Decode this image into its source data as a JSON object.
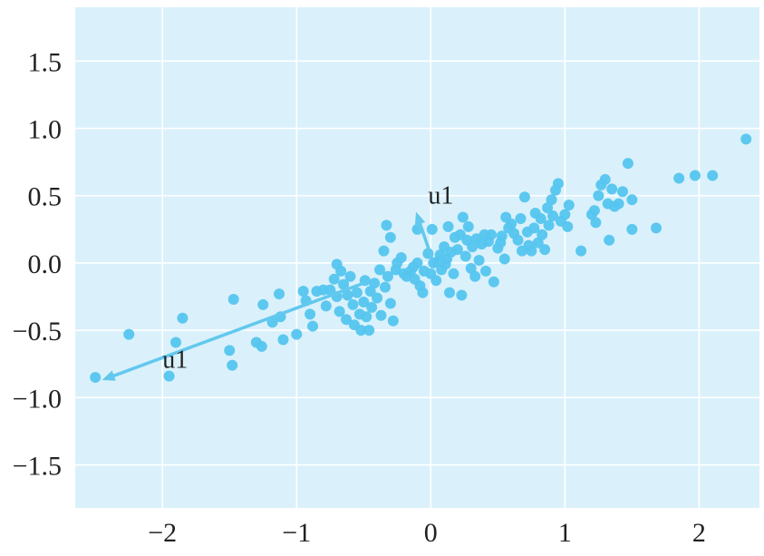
{
  "chart_data": {
    "type": "scatter",
    "title": "",
    "xlabel": "",
    "ylabel": "",
    "xlim": [
      -2.65,
      2.45
    ],
    "ylim": [
      -1.82,
      1.9
    ],
    "grid": true,
    "legend": "none",
    "colors": {
      "background": "#daf1fb",
      "grid": "#ffffff",
      "point": "#55c5ef",
      "arrow": "#62c8ee"
    },
    "x_ticks": [
      {
        "value": -2,
        "label": "−2"
      },
      {
        "value": -1,
        "label": "−1"
      },
      {
        "value": 0,
        "label": "0"
      },
      {
        "value": 1,
        "label": "1"
      },
      {
        "value": 2,
        "label": "2"
      }
    ],
    "y_ticks": [
      {
        "value": 1.5,
        "label": "1.5"
      },
      {
        "value": 1.0,
        "label": "1.0"
      },
      {
        "value": 0.5,
        "label": "0.5"
      },
      {
        "value": 0.0,
        "label": "0.0"
      },
      {
        "value": -0.5,
        "label": "−0.5"
      },
      {
        "value": -1.0,
        "label": "−1.0"
      },
      {
        "value": -1.5,
        "label": "−1.5"
      }
    ],
    "annotations": [
      {
        "text": "u1",
        "x": -0.02,
        "y": 0.44
      },
      {
        "text": "u1",
        "x": -2.0,
        "y": -0.78
      }
    ],
    "arrows": [
      {
        "from": [
          0.01,
          0.03
        ],
        "to": [
          -0.11,
          0.38
        ]
      },
      {
        "from": [
          -0.5,
          -0.15
        ],
        "to": [
          -2.45,
          -0.87
        ]
      }
    ],
    "points": [
      [
        -2.5,
        -0.85
      ],
      [
        -2.25,
        -0.53
      ],
      [
        -1.95,
        -0.84
      ],
      [
        -1.9,
        -0.59
      ],
      [
        -1.85,
        -0.41
      ],
      [
        -1.5,
        -0.65
      ],
      [
        -1.48,
        -0.76
      ],
      [
        -1.47,
        -0.27
      ],
      [
        -1.3,
        -0.59
      ],
      [
        -1.26,
        -0.62
      ],
      [
        -1.25,
        -0.31
      ],
      [
        -1.18,
        -0.44
      ],
      [
        -1.13,
        -0.23
      ],
      [
        -1.1,
        -0.57
      ],
      [
        -1.12,
        -0.4
      ],
      [
        -1.0,
        -0.53
      ],
      [
        -0.95,
        -0.21
      ],
      [
        -0.93,
        -0.28
      ],
      [
        -0.9,
        -0.38
      ],
      [
        -0.88,
        -0.47
      ],
      [
        -0.85,
        -0.21
      ],
      [
        -0.8,
        -0.2
      ],
      [
        -0.78,
        -0.32
      ],
      [
        -0.75,
        -0.2
      ],
      [
        -0.72,
        -0.12
      ],
      [
        -0.7,
        -0.01
      ],
      [
        -0.7,
        -0.25
      ],
      [
        -0.68,
        -0.36
      ],
      [
        -0.67,
        -0.06
      ],
      [
        -0.65,
        -0.16
      ],
      [
        -0.63,
        -0.42
      ],
      [
        -0.62,
        -0.24
      ],
      [
        -0.6,
        -0.1
      ],
      [
        -0.58,
        -0.31
      ],
      [
        -0.57,
        -0.46
      ],
      [
        -0.55,
        -0.22
      ],
      [
        -0.53,
        -0.38
      ],
      [
        -0.52,
        -0.5
      ],
      [
        -0.5,
        -0.29
      ],
      [
        -0.49,
        -0.13
      ],
      [
        -0.48,
        -0.4
      ],
      [
        -0.46,
        -0.5
      ],
      [
        -0.45,
        -0.21
      ],
      [
        -0.44,
        -0.33
      ],
      [
        -0.42,
        -0.15
      ],
      [
        -0.4,
        -0.26
      ],
      [
        -0.38,
        -0.05
      ],
      [
        -0.37,
        -0.39
      ],
      [
        -0.35,
        0.09
      ],
      [
        -0.34,
        -0.18
      ],
      [
        -0.33,
        0.28
      ],
      [
        -0.32,
        -0.1
      ],
      [
        -0.3,
        0.19
      ],
      [
        -0.3,
        -0.3
      ],
      [
        -0.28,
        -0.43
      ],
      [
        -0.26,
        -0.05
      ],
      [
        -0.25,
        0.0
      ],
      [
        -0.22,
        0.04
      ],
      [
        -0.2,
        -0.08
      ],
      [
        -0.18,
        -0.1
      ],
      [
        -0.15,
        -0.06
      ],
      [
        -0.13,
        -0.03
      ],
      [
        -0.12,
        -0.12
      ],
      [
        -0.1,
        0.25
      ],
      [
        -0.1,
        0.0
      ],
      [
        -0.08,
        -0.17
      ],
      [
        -0.06,
        -0.22
      ],
      [
        -0.05,
        -0.06
      ],
      [
        -0.02,
        0.07
      ],
      [
        0.0,
        -0.08
      ],
      [
        0.01,
        0.25
      ],
      [
        0.02,
        0.0
      ],
      [
        0.04,
        -0.13
      ],
      [
        0.05,
        0.01
      ],
      [
        0.07,
        0.06
      ],
      [
        0.08,
        -0.05
      ],
      [
        0.1,
        0.12
      ],
      [
        0.11,
        -0.01
      ],
      [
        0.12,
        0.03
      ],
      [
        0.13,
        0.27
      ],
      [
        0.14,
        -0.22
      ],
      [
        0.15,
        0.08
      ],
      [
        0.17,
        -0.08
      ],
      [
        0.18,
        0.19
      ],
      [
        0.2,
        0.1
      ],
      [
        0.22,
        0.21
      ],
      [
        0.23,
        -0.24
      ],
      [
        0.24,
        0.34
      ],
      [
        0.26,
        0.05
      ],
      [
        0.27,
        0.17
      ],
      [
        0.28,
        0.27
      ],
      [
        0.3,
        -0.04
      ],
      [
        0.31,
        0.12
      ],
      [
        0.33,
        -0.1
      ],
      [
        0.34,
        0.18
      ],
      [
        0.36,
        0.02
      ],
      [
        0.38,
        0.14
      ],
      [
        0.4,
        0.21
      ],
      [
        0.41,
        -0.06
      ],
      [
        0.43,
        0.16
      ],
      [
        0.45,
        0.21
      ],
      [
        0.47,
        -0.14
      ],
      [
        0.5,
        0.11
      ],
      [
        0.52,
        0.15
      ],
      [
        0.53,
        0.2
      ],
      [
        0.55,
        0.03
      ],
      [
        0.56,
        0.34
      ],
      [
        0.58,
        0.26
      ],
      [
        0.6,
        0.29
      ],
      [
        0.62,
        0.22
      ],
      [
        0.65,
        0.17
      ],
      [
        0.67,
        0.33
      ],
      [
        0.68,
        0.09
      ],
      [
        0.7,
        0.49
      ],
      [
        0.72,
        0.23
      ],
      [
        0.73,
        0.13
      ],
      [
        0.75,
        0.09
      ],
      [
        0.77,
        0.26
      ],
      [
        0.78,
        0.37
      ],
      [
        0.8,
        0.15
      ],
      [
        0.82,
        0.33
      ],
      [
        0.83,
        0.21
      ],
      [
        0.85,
        0.1
      ],
      [
        0.87,
        0.41
      ],
      [
        0.88,
        0.28
      ],
      [
        0.9,
        0.47
      ],
      [
        0.91,
        0.35
      ],
      [
        0.93,
        0.54
      ],
      [
        0.95,
        0.59
      ],
      [
        0.97,
        0.31
      ],
      [
        1.0,
        0.36
      ],
      [
        1.02,
        0.27
      ],
      [
        1.03,
        0.43
      ],
      [
        1.12,
        0.09
      ],
      [
        1.2,
        0.36
      ],
      [
        1.22,
        0.39
      ],
      [
        1.23,
        0.3
      ],
      [
        1.25,
        0.5
      ],
      [
        1.27,
        0.58
      ],
      [
        1.3,
        0.62
      ],
      [
        1.32,
        0.44
      ],
      [
        1.33,
        0.17
      ],
      [
        1.35,
        0.55
      ],
      [
        1.37,
        0.42
      ],
      [
        1.4,
        0.44
      ],
      [
        1.43,
        0.53
      ],
      [
        1.47,
        0.74
      ],
      [
        1.5,
        0.25
      ],
      [
        1.5,
        0.47
      ],
      [
        1.68,
        0.26
      ],
      [
        1.85,
        0.63
      ],
      [
        1.97,
        0.65
      ],
      [
        2.1,
        0.65
      ],
      [
        2.35,
        0.92
      ]
    ]
  }
}
